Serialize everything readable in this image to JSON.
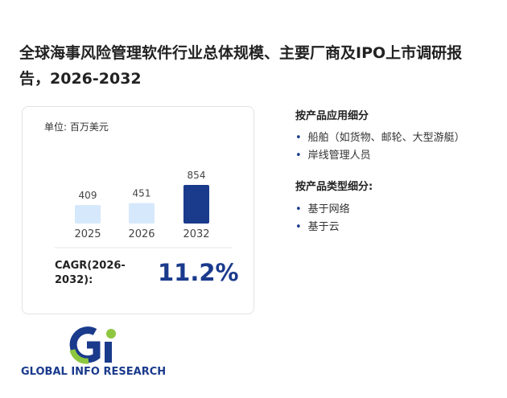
{
  "title": "全球海事风险管理软件行业总体规模、主要厂商及IPO上市调研报告，2026-2032",
  "chart_data": {
    "type": "bar",
    "unit_label": "单位: 百万美元",
    "categories": [
      "2025",
      "2026",
      "2032"
    ],
    "values": [
      409,
      451,
      854
    ],
    "colors": [
      "#d6e8fb",
      "#d6e8fb",
      "#1a3a8c"
    ]
  },
  "cagr": {
    "label": "CAGR(2026-2032):",
    "value": "11.2%"
  },
  "segments": [
    {
      "heading": "按产品应用细分",
      "items": [
        "船舶（如货物、邮轮、大型游艇）",
        "岸线管理人员"
      ]
    },
    {
      "heading": "按产品类型细分:",
      "items": [
        "基于网络",
        "基于云"
      ]
    }
  ],
  "logo": "GLOBAL INFO RESEARCH"
}
